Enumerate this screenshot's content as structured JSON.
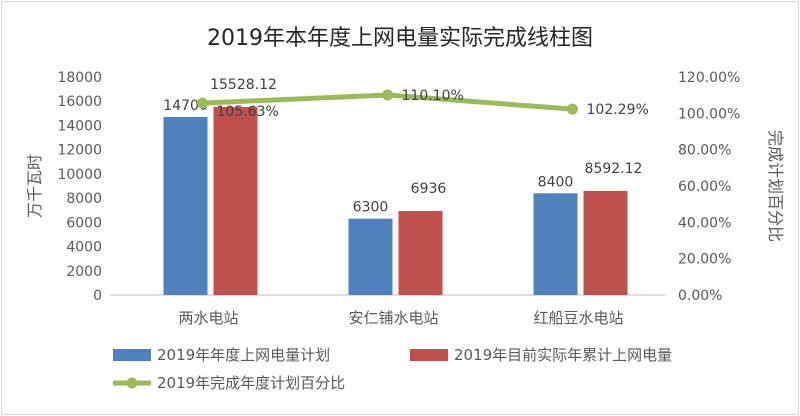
{
  "chart_data": {
    "type": "bar+line",
    "title": "2019年本年度上网电量实际完成线柱图",
    "ylabel": "万千瓦时",
    "y2label": "完成计划百分比",
    "categories": [
      "两水电站",
      "安仁铺水电站",
      "红船豆水电站"
    ],
    "ylim": [
      0,
      18000
    ],
    "yticks": [
      "0",
      "2000",
      "4000",
      "6000",
      "8000",
      "10000",
      "12000",
      "14000",
      "16000",
      "18000"
    ],
    "y2lim": [
      0,
      120
    ],
    "y2ticks": [
      "0.00%",
      "20.00%",
      "40.00%",
      "60.00%",
      "80.00%",
      "100.00%",
      "120.00%"
    ],
    "grid": false,
    "legend_position": "bottom",
    "series": [
      {
        "name": "2019年年度上网电量计划",
        "kind": "bar",
        "axis": "left",
        "color": "#4f81bd",
        "values": [
          14700,
          6300,
          8400
        ],
        "labels": [
          "14700",
          "6300",
          "8400"
        ]
      },
      {
        "name": "2019年目前实际年累计上网电量",
        "kind": "bar",
        "axis": "left",
        "color": "#c0504d",
        "values": [
          15528.12,
          6936,
          8592.12
        ],
        "labels": [
          "15528.12",
          "6936",
          "8592.12"
        ]
      },
      {
        "name": "2019年完成年度计划百分比",
        "kind": "line",
        "axis": "right",
        "color": "#9bbb59",
        "values": [
          105.63,
          110.1,
          102.29
        ],
        "labels": [
          "105.63%",
          "110.10%",
          "102.29%"
        ]
      }
    ]
  }
}
